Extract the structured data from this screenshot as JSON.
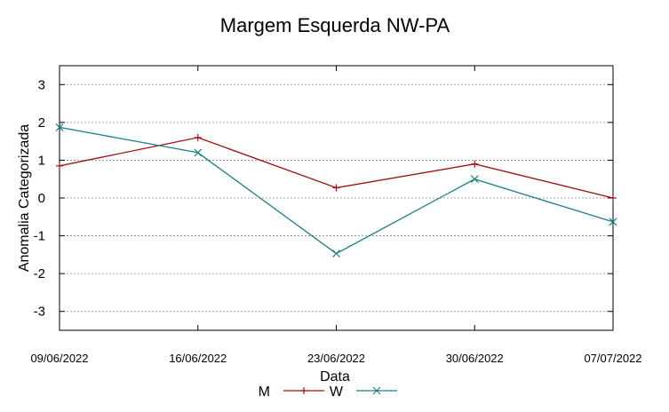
{
  "chart_data": {
    "type": "line",
    "title": "Margem Esquerda NW-PA",
    "xlabel": "Data",
    "ylabel": "Anomalia Categorizada",
    "categories": [
      "09/06/2022",
      "16/06/2022",
      "23/06/2022",
      "30/06/2022",
      "07/07/2022"
    ],
    "x_days": [
      0,
      7,
      14,
      21,
      28
    ],
    "xlim": [
      0,
      28
    ],
    "ylim": [
      -3.5,
      3.5
    ],
    "yticks": [
      3,
      2,
      1,
      0,
      -1,
      -2,
      -3
    ],
    "grid": true,
    "legend_position": "bottom-center",
    "series": [
      {
        "name": "M",
        "color": "#a01010",
        "marker": "plus",
        "values": [
          0.85,
          1.6,
          0.27,
          0.9,
          0.0
        ]
      },
      {
        "name": "W",
        "color": "#1a7f86",
        "marker": "cross",
        "values": [
          1.87,
          1.2,
          -1.47,
          0.5,
          -0.63
        ]
      }
    ]
  }
}
